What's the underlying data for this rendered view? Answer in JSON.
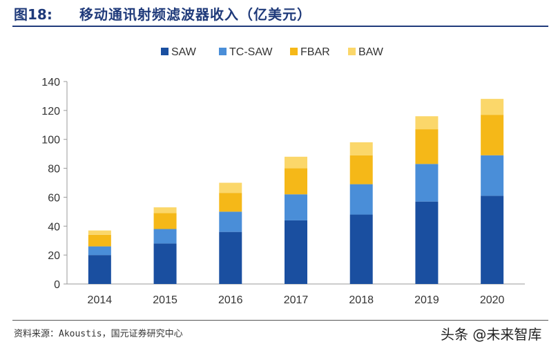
{
  "header": {
    "figure_no": "图18:",
    "title": "移动通讯射频滤波器收入（亿美元）"
  },
  "footer": {
    "source": "资料来源：Akoustis，国元证券研究中心",
    "watermark": "头条 @未来智库"
  },
  "chart_data": {
    "type": "bar",
    "stacked": true,
    "categories": [
      "2014",
      "2015",
      "2016",
      "2017",
      "2018",
      "2019",
      "2020"
    ],
    "series": [
      {
        "name": "SAW",
        "color": "#1a4fa0",
        "values": [
          20,
          28,
          36,
          44,
          48,
          57,
          61
        ]
      },
      {
        "name": "TC-SAW",
        "color": "#4a8ed8",
        "values": [
          6,
          10,
          14,
          18,
          21,
          26,
          28
        ]
      },
      {
        "name": "FBAR",
        "color": "#f5b818",
        "values": [
          8,
          11,
          13,
          18,
          20,
          24,
          28
        ]
      },
      {
        "name": "BAW",
        "color": "#fbd76a",
        "values": [
          3,
          4,
          7,
          8,
          9,
          9,
          11
        ]
      }
    ],
    "ylim": [
      0,
      140
    ],
    "yticks": [
      0,
      20,
      40,
      60,
      80,
      100,
      120,
      140
    ],
    "legend_position": "top-center",
    "grid": false
  }
}
